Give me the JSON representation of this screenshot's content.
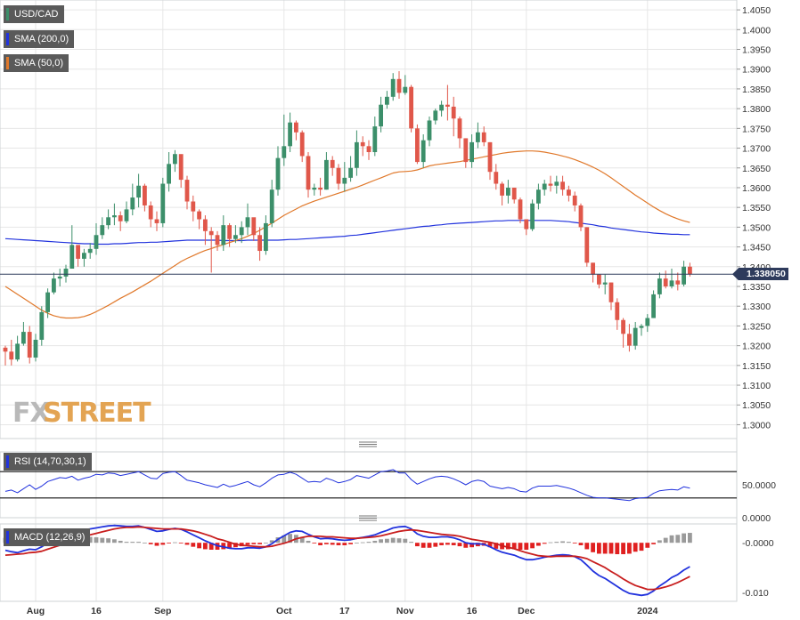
{
  "chart_data": {
    "type": "candlestick",
    "symbol": "USD/CAD",
    "indicators": {
      "sma200_label": "SMA (200,0)",
      "sma50_label": "SMA (50,0)",
      "rsi_label": "RSI (14,70,30,1)",
      "macd_label": "MACD (12,26,9)"
    },
    "colors": {
      "up": "#3c8f6a",
      "down": "#e0574a",
      "sma200": "#2233dd",
      "sma50": "#e0782a",
      "rsi": "#2233dd",
      "macd": "#2233dd",
      "signal": "#c81e1e",
      "hist_pos": "#9a9a9a",
      "hist_neg": "#e02020",
      "grid": "#e6e6e6"
    },
    "price_axis": {
      "ylim": [
        1.2965,
        1.4075
      ],
      "ticks": [
        "1.4050",
        "1.4000",
        "1.3950",
        "1.3900",
        "1.3850",
        "1.3800",
        "1.3750",
        "1.3700",
        "1.3650",
        "1.3600",
        "1.3550",
        "1.3500",
        "1.3450",
        "1.3400",
        "1.3350",
        "1.3300",
        "1.3250",
        "1.3200",
        "1.3150",
        "1.3100",
        "1.3050",
        "1.3000"
      ],
      "last_price": 1.3381,
      "last_price_label": "1.338050"
    },
    "rsi_axis": {
      "ylim": [
        0,
        100
      ],
      "ticks": [
        {
          "v": 50,
          "label": "50.0000"
        },
        {
          "v": 0,
          "label": "0.0000"
        }
      ],
      "overbought": 70,
      "oversold": 30
    },
    "macd_axis": {
      "ylim": [
        -0.0118,
        0.0038
      ],
      "ticks": [
        {
          "v": 0,
          "label": "-0.0000"
        },
        {
          "v": -0.01,
          "label": "-0.010"
        }
      ]
    },
    "x_axis": {
      "labels": [
        {
          "label": "Aug",
          "index": 5
        },
        {
          "label": "16",
          "index": 15
        },
        {
          "label": "Sep",
          "index": 26
        },
        {
          "label": "Oct",
          "index": 46
        },
        {
          "label": "17",
          "index": 56
        },
        {
          "label": "Nov",
          "index": 66
        },
        {
          "label": "16",
          "index": 77
        },
        {
          "label": "Dec",
          "index": 86
        },
        {
          "label": "2024",
          "index": 106
        }
      ]
    },
    "close": [
      1.3185,
      1.3165,
      1.3205,
      1.3235,
      1.317,
      1.3215,
      1.3285,
      1.3335,
      1.337,
      1.3375,
      1.3395,
      1.3455,
      1.342,
      1.3435,
      1.3445,
      1.348,
      1.3505,
      1.3525,
      1.353,
      1.3515,
      1.3545,
      1.3575,
      1.3605,
      1.3555,
      1.352,
      1.351,
      1.361,
      1.366,
      1.3685,
      1.362,
      1.3565,
      1.354,
      1.352,
      1.349,
      1.348,
      1.3455,
      1.3505,
      1.347,
      1.348,
      1.35,
      1.3525,
      1.348,
      1.344,
      1.351,
      1.3595,
      1.3675,
      1.3705,
      1.3765,
      1.374,
      1.368,
      1.3595,
      1.36,
      1.3595,
      1.367,
      1.365,
      1.361,
      1.3625,
      1.365,
      1.3715,
      1.3705,
      1.369,
      1.3755,
      1.381,
      1.383,
      1.3875,
      1.384,
      1.3855,
      1.375,
      1.3665,
      1.372,
      1.377,
      1.3795,
      1.381,
      1.3805,
      1.3775,
      1.3725,
      1.3665,
      1.3715,
      1.374,
      1.3715,
      1.364,
      1.361,
      1.358,
      1.36,
      1.357,
      1.352,
      1.3495,
      1.356,
      1.3595,
      1.361,
      1.3605,
      1.3615,
      1.3595,
      1.358,
      1.3555,
      1.35,
      1.341,
      1.338,
      1.3355,
      1.336,
      1.331,
      1.3265,
      1.323,
      1.32,
      1.3245,
      1.325,
      1.327,
      1.333,
      1.337,
      1.335,
      1.3365,
      1.3355,
      1.34,
      1.3381
    ],
    "high": [
      1.32,
      1.3215,
      1.3225,
      1.326,
      1.325,
      1.323,
      1.33,
      1.3345,
      1.3385,
      1.3395,
      1.3405,
      1.3505,
      1.3445,
      1.3445,
      1.346,
      1.351,
      1.3525,
      1.3545,
      1.356,
      1.354,
      1.3565,
      1.361,
      1.3635,
      1.361,
      1.3565,
      1.354,
      1.3625,
      1.369,
      1.3695,
      1.368,
      1.363,
      1.358,
      1.3545,
      1.353,
      1.35,
      1.349,
      1.353,
      1.351,
      1.3505,
      1.3515,
      1.356,
      1.352,
      1.35,
      1.353,
      1.362,
      1.3705,
      1.3785,
      1.379,
      1.377,
      1.3745,
      1.369,
      1.361,
      1.3625,
      1.369,
      1.368,
      1.366,
      1.3665,
      1.368,
      1.3745,
      1.373,
      1.372,
      1.378,
      1.383,
      1.3845,
      1.389,
      1.3895,
      1.3885,
      1.386,
      1.376,
      1.3735,
      1.378,
      1.38,
      1.382,
      1.386,
      1.383,
      1.378,
      1.3725,
      1.3735,
      1.3765,
      1.3755,
      1.3715,
      1.366,
      1.3615,
      1.362,
      1.36,
      1.3575,
      1.352,
      1.357,
      1.361,
      1.362,
      1.363,
      1.363,
      1.363,
      1.3605,
      1.359,
      1.356,
      1.35,
      1.341,
      1.338,
      1.338,
      1.336,
      1.332,
      1.327,
      1.3255,
      1.326,
      1.3255,
      1.328,
      1.334,
      1.3385,
      1.339,
      1.3395,
      1.3385,
      1.3415,
      1.341
    ],
    "low": [
      1.315,
      1.315,
      1.316,
      1.32,
      1.3155,
      1.316,
      1.32,
      1.327,
      1.333,
      1.335,
      1.336,
      1.3395,
      1.34,
      1.34,
      1.342,
      1.343,
      1.347,
      1.3495,
      1.3505,
      1.349,
      1.351,
      1.353,
      1.355,
      1.354,
      1.35,
      1.349,
      1.35,
      1.359,
      1.364,
      1.36,
      1.3545,
      1.3515,
      1.3495,
      1.3455,
      1.3385,
      1.344,
      1.344,
      1.345,
      1.346,
      1.346,
      1.348,
      1.3465,
      1.3415,
      1.343,
      1.35,
      1.358,
      1.3655,
      1.369,
      1.372,
      1.3665,
      1.3575,
      1.358,
      1.358,
      1.3595,
      1.363,
      1.3595,
      1.359,
      1.3615,
      1.363,
      1.368,
      1.367,
      1.368,
      1.374,
      1.38,
      1.382,
      1.3825,
      1.3835,
      1.374,
      1.366,
      1.365,
      1.3705,
      1.376,
      1.378,
      1.377,
      1.373,
      1.37,
      1.365,
      1.365,
      1.37,
      1.3705,
      1.362,
      1.3595,
      1.3555,
      1.356,
      1.356,
      1.351,
      1.348,
      1.349,
      1.3545,
      1.358,
      1.359,
      1.3585,
      1.358,
      1.3565,
      1.354,
      1.349,
      1.34,
      1.336,
      1.3345,
      1.333,
      1.329,
      1.324,
      1.3195,
      1.3185,
      1.319,
      1.3225,
      1.3235,
      1.327,
      1.332,
      1.3345,
      1.3345,
      1.334,
      1.335,
      1.3375
    ],
    "sma200": [
      1.3471,
      1.347,
      1.3469,
      1.3468,
      1.3467,
      1.3466,
      1.3465,
      1.3464,
      1.3463,
      1.3462,
      1.3461,
      1.346,
      1.3459,
      1.3458,
      1.3458,
      1.3457,
      1.3457,
      1.3457,
      1.3458,
      1.3458,
      1.3459,
      1.346,
      1.3461,
      1.3461,
      1.3462,
      1.3462,
      1.3463,
      1.3464,
      1.3465,
      1.3466,
      1.3467,
      1.3467,
      1.3467,
      1.3467,
      1.3467,
      1.3467,
      1.3466,
      1.3466,
      1.3466,
      1.3466,
      1.3467,
      1.3467,
      1.3467,
      1.3467,
      1.3467,
      1.3467,
      1.3468,
      1.3469,
      1.3469,
      1.347,
      1.3471,
      1.3472,
      1.3473,
      1.3474,
      1.3475,
      1.3476,
      1.3477,
      1.3479,
      1.348,
      1.3482,
      1.3484,
      1.3486,
      1.3488,
      1.349,
      1.3492,
      1.3494,
      1.3496,
      1.3498,
      1.35,
      1.3502,
      1.3503,
      1.3505,
      1.3506,
      1.3508,
      1.3509,
      1.351,
      1.3511,
      1.3512,
      1.3513,
      1.3514,
      1.3515,
      1.3516,
      1.3516,
      1.3517,
      1.3517,
      1.3517,
      1.3517,
      1.3517,
      1.3517,
      1.3517,
      1.3517,
      1.3516,
      1.3515,
      1.3514,
      1.3512,
      1.351,
      1.3508,
      1.3506,
      1.3503,
      1.3501,
      1.3498,
      1.3496,
      1.3494,
      1.3492,
      1.349,
      1.3488,
      1.3487,
      1.3485,
      1.3484,
      1.3483,
      1.3482,
      1.3482,
      1.3481,
      1.3481
    ],
    "sma50": [
      1.335,
      1.334,
      1.333,
      1.332,
      1.331,
      1.33,
      1.329,
      1.3282,
      1.3276,
      1.3272,
      1.327,
      1.327,
      1.3271,
      1.3274,
      1.3279,
      1.3286,
      1.3294,
      1.3302,
      1.3311,
      1.332,
      1.3328,
      1.3336,
      1.3345,
      1.3354,
      1.3363,
      1.3373,
      1.3383,
      1.3393,
      1.3403,
      1.3413,
      1.3421,
      1.3428,
      1.3435,
      1.3441,
      1.3446,
      1.3451,
      1.3456,
      1.3461,
      1.3466,
      1.3471,
      1.3477,
      1.3484,
      1.3492,
      1.3501,
      1.351,
      1.352,
      1.353,
      1.3538,
      1.3546,
      1.3554,
      1.356,
      1.3566,
      1.3571,
      1.3576,
      1.3581,
      1.3586,
      1.3591,
      1.3596,
      1.3601,
      1.3607,
      1.3613,
      1.3619,
      1.3625,
      1.3631,
      1.3637,
      1.364,
      1.3641,
      1.3642,
      1.3645,
      1.365,
      1.3655,
      1.3658,
      1.366,
      1.3662,
      1.3664,
      1.3666,
      1.3669,
      1.3672,
      1.3675,
      1.3678,
      1.3681,
      1.3684,
      1.3687,
      1.3689,
      1.3691,
      1.3692,
      1.3693,
      1.3693,
      1.3692,
      1.369,
      1.3687,
      1.3684,
      1.368,
      1.3676,
      1.3671,
      1.3665,
      1.3659,
      1.3652,
      1.3644,
      1.3635,
      1.3625,
      1.3614,
      1.3603,
      1.3592,
      1.3581,
      1.3571,
      1.3561,
      1.3551,
      1.3542,
      1.3534,
      1.3527,
      1.3521,
      1.3516,
      1.3512
    ],
    "rsi": [
      40,
      42,
      38,
      44,
      50,
      43,
      48,
      55,
      58,
      61,
      60,
      63,
      57,
      60,
      62,
      66,
      65,
      68,
      67,
      64,
      66,
      68,
      70,
      65,
      60,
      59,
      67,
      69,
      70,
      64,
      57,
      55,
      53,
      50,
      48,
      46,
      51,
      47,
      49,
      52,
      55,
      50,
      47,
      53,
      60,
      65,
      66,
      69,
      66,
      60,
      54,
      55,
      54,
      60,
      57,
      53,
      55,
      58,
      64,
      62,
      60,
      65,
      70,
      71,
      73,
      68,
      68,
      58,
      51,
      55,
      59,
      62,
      63,
      62,
      59,
      55,
      50,
      55,
      57,
      55,
      48,
      46,
      44,
      46,
      44,
      40,
      39,
      45,
      48,
      48,
      48,
      49,
      47,
      45,
      42,
      38,
      34,
      31,
      30,
      30,
      29,
      28,
      27,
      26,
      29,
      30,
      31,
      37,
      41,
      42,
      43,
      42,
      47,
      45
    ],
    "macd": [
      -0.0015,
      -0.0018,
      -0.002,
      -0.0016,
      -0.0013,
      -0.0014,
      -0.0008,
      0.0,
      0.0007,
      0.0011,
      0.0015,
      0.0022,
      0.0024,
      0.0026,
      0.0028,
      0.003,
      0.0032,
      0.0034,
      0.0035,
      0.0034,
      0.0033,
      0.0033,
      0.0034,
      0.0031,
      0.0027,
      0.0023,
      0.0024,
      0.0027,
      0.0029,
      0.0027,
      0.0022,
      0.0016,
      0.001,
      0.0004,
      -0.0001,
      -0.0006,
      -0.0008,
      -0.0011,
      -0.0012,
      -0.0012,
      -0.001,
      -0.001,
      -0.0011,
      -0.0008,
      -0.0002,
      0.0007,
      0.0014,
      0.0021,
      0.0024,
      0.0023,
      0.0017,
      0.0012,
      0.0008,
      0.0009,
      0.0008,
      0.0006,
      0.0005,
      0.0006,
      0.0009,
      0.0011,
      0.0013,
      0.0016,
      0.0021,
      0.0025,
      0.003,
      0.0032,
      0.0033,
      0.0028,
      0.0018,
      0.0013,
      0.0011,
      0.0011,
      0.0012,
      0.0012,
      0.001,
      0.0006,
      0.0,
      -0.0002,
      -0.0002,
      -0.0003,
      -0.0008,
      -0.0014,
      -0.0019,
      -0.0022,
      -0.0025,
      -0.003,
      -0.0034,
      -0.0034,
      -0.0032,
      -0.0029,
      -0.0027,
      -0.0025,
      -0.0024,
      -0.0025,
      -0.0028,
      -0.0034,
      -0.0045,
      -0.0057,
      -0.0066,
      -0.0072,
      -0.008,
      -0.0088,
      -0.0096,
      -0.0102,
      -0.0104,
      -0.0106,
      -0.0104,
      -0.0097,
      -0.0087,
      -0.0079,
      -0.007,
      -0.0064,
      -0.0055,
      -0.0048
    ],
    "signal": [
      -0.0025,
      -0.0024,
      -0.0023,
      -0.0022,
      -0.002,
      -0.0019,
      -0.0017,
      -0.0013,
      -0.0009,
      -0.0005,
      -0.0001,
      0.0004,
      0.0008,
      0.0012,
      0.0016,
      0.0019,
      0.0022,
      0.0025,
      0.0028,
      0.003,
      0.0031,
      0.0031,
      0.0032,
      0.0031,
      0.003,
      0.0029,
      0.0028,
      0.0028,
      0.0028,
      0.0028,
      0.0026,
      0.0024,
      0.0021,
      0.0017,
      0.0013,
      0.0008,
      0.0005,
      0.0001,
      -0.0003,
      -0.0005,
      -0.0006,
      -0.0007,
      -0.0008,
      -0.0008,
      -0.0007,
      -0.0004,
      -0.0001,
      0.0003,
      0.0008,
      0.0011,
      0.0013,
      0.0013,
      0.0013,
      0.0012,
      0.0012,
      0.0011,
      0.001,
      0.0009,
      0.0009,
      0.001,
      0.0011,
      0.0012,
      0.0014,
      0.0017,
      0.002,
      0.0023,
      0.0025,
      0.0026,
      0.0025,
      0.0023,
      0.0021,
      0.0019,
      0.0017,
      0.0016,
      0.0015,
      0.0013,
      0.001,
      0.0007,
      0.0005,
      0.0003,
      0.0001,
      -0.0002,
      -0.0006,
      -0.0009,
      -0.0012,
      -0.0016,
      -0.002,
      -0.0023,
      -0.0026,
      -0.0027,
      -0.0028,
      -0.0027,
      -0.0027,
      -0.0027,
      -0.0027,
      -0.0029,
      -0.0032,
      -0.0038,
      -0.0044,
      -0.005,
      -0.0058,
      -0.0065,
      -0.0073,
      -0.008,
      -0.0086,
      -0.009,
      -0.0094,
      -0.0094,
      -0.0092,
      -0.0089,
      -0.0085,
      -0.008,
      -0.0074,
      -0.0068
    ]
  }
}
